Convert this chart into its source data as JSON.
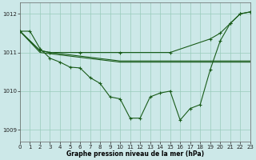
{
  "bg_color": "#cce8e8",
  "grid_color": "#99ccbb",
  "line_color": "#1a5c1a",
  "xlabel": "Graphe pression niveau de la mer (hPa)",
  "xlim": [
    0,
    23
  ],
  "ylim": [
    1008.7,
    1012.3
  ],
  "yticks": [
    1009,
    1010,
    1011,
    1012
  ],
  "xticks": [
    0,
    1,
    2,
    3,
    4,
    5,
    6,
    7,
    8,
    9,
    10,
    11,
    12,
    13,
    14,
    15,
    16,
    17,
    18,
    19,
    20,
    21,
    22,
    23
  ],
  "line1_x": [
    0,
    1,
    2,
    3,
    4,
    5,
    6,
    7,
    8,
    9,
    10,
    11,
    12,
    13,
    14,
    15,
    16,
    17,
    18,
    19,
    20,
    21,
    22,
    23
  ],
  "line1_y": [
    1011.55,
    1011.55,
    1011.1,
    1010.85,
    1010.75,
    1010.62,
    1010.6,
    1010.35,
    1010.2,
    1009.85,
    1009.8,
    1009.3,
    1009.3,
    1009.85,
    1009.95,
    1010.0,
    1009.25,
    1009.55,
    1009.65,
    1010.55,
    1011.3,
    1011.75,
    1012.0,
    1012.05
  ],
  "line2_x": [
    0,
    2,
    3,
    6,
    10,
    15,
    19,
    20,
    21,
    22,
    23
  ],
  "line2_y": [
    1011.55,
    1011.05,
    1011.0,
    1011.0,
    1011.0,
    1011.0,
    1011.35,
    1011.5,
    1011.75,
    1012.0,
    1012.05
  ],
  "line3_x": [
    0,
    2,
    3,
    10,
    16,
    23
  ],
  "line3_y": [
    1011.55,
    1011.05,
    1011.0,
    1010.78,
    1010.78,
    1010.78
  ],
  "line4_x": [
    0,
    2,
    10,
    23
  ],
  "line4_y": [
    1011.55,
    1011.0,
    1010.75,
    1010.75
  ]
}
